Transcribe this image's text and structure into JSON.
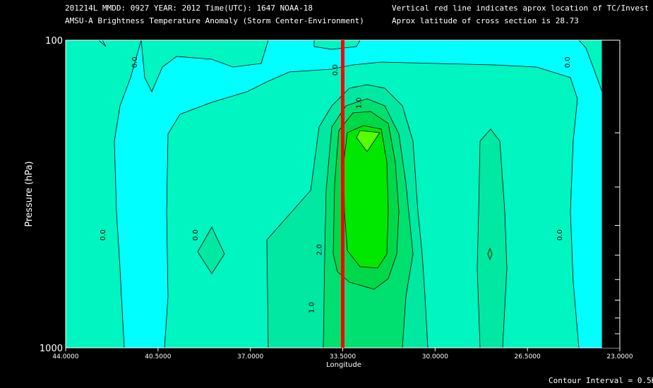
{
  "header": {
    "line1_left": "201214L  MMDD: 0927 YEAR: 2012 Time(UTC): 1647 NOAA-18",
    "line2_left": "AMSU-A Brightness Temperature Anomaly (Storm Center-Environment)",
    "line1_right": "Vertical red line indicates aprox location of TC/Invest",
    "line2_right": "Aprox latitude of cross section is 28.73"
  },
  "footer": {
    "contour_interval": "Contour Interval = 0.5K"
  },
  "colors": {
    "background": "#000000",
    "cyan": "#00ffff",
    "c0": "#00f5c0",
    "c05": "#00e8a2",
    "c10": "#00e070",
    "c15": "#00d84a",
    "c20": "#00e800",
    "c25": "#55ff00",
    "red_line": "#ff0000"
  },
  "chart_data": {
    "type": "contour",
    "title": "AMSU-A Brightness Temperature Anomaly (Storm Center-Environment)",
    "xlabel": "Longitude",
    "ylabel": "Pressure (hPa)",
    "x_ticks": [
      "44.0000",
      "40.5000",
      "37.0000",
      "33.5000",
      "30.0000",
      "26.5000",
      "23.0000"
    ],
    "x_tick_values": [
      44.0,
      40.5,
      37.0,
      33.5,
      30.0,
      26.5,
      23.0
    ],
    "xlim": [
      44.0,
      23.0
    ],
    "y_ticks": [
      "100",
      "1000"
    ],
    "ylim": [
      1000,
      100
    ],
    "y_scale": "log",
    "storm_longitude": 33.5,
    "contour_interval": 0.5,
    "contour_labels": [
      {
        "text": "0.0",
        "lon": 41.3,
        "p": 118
      },
      {
        "text": "0.0",
        "lon": 33.7,
        "p": 125
      },
      {
        "text": "0.0",
        "lon": 24.9,
        "p": 118
      },
      {
        "text": "1.0",
        "lon": 32.8,
        "p": 160
      },
      {
        "text": "0.0",
        "lon": 42.5,
        "p": 430
      },
      {
        "text": "0.0",
        "lon": 39.0,
        "p": 430
      },
      {
        "text": "0.0",
        "lon": 25.2,
        "p": 430
      },
      {
        "text": "2.0",
        "lon": 34.3,
        "p": 480
      },
      {
        "text": "1.0",
        "lon": 34.6,
        "p": 740
      }
    ]
  }
}
